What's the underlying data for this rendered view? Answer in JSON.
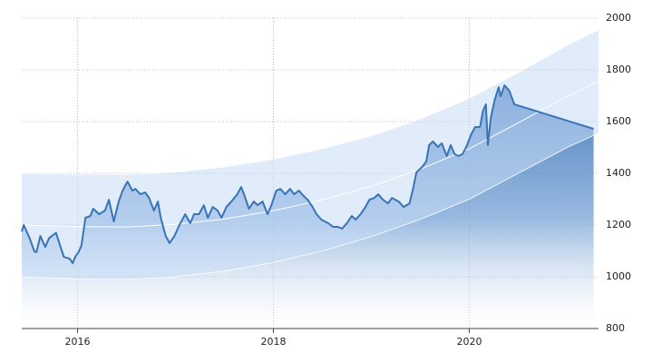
{
  "chart_data": {
    "type": "line",
    "x": [
      2015.43,
      2015.45,
      2015.51,
      2015.56,
      2015.58,
      2015.62,
      2015.67,
      2015.71,
      2015.78,
      2015.82,
      2015.86,
      2015.92,
      2015.95,
      2015.98,
      2016.01,
      2016.04,
      2016.08,
      2016.13,
      2016.16,
      2016.22,
      2016.28,
      2016.32,
      2016.37,
      2016.42,
      2016.46,
      2016.51,
      2016.56,
      2016.59,
      2016.64,
      2016.69,
      2016.73,
      2016.78,
      2016.82,
      2016.85,
      2016.9,
      2016.94,
      2016.99,
      2017.04,
      2017.1,
      2017.15,
      2017.19,
      2017.24,
      2017.29,
      2017.33,
      2017.38,
      2017.43,
      2017.47,
      2017.52,
      2017.57,
      2017.63,
      2017.67,
      2017.7,
      2017.75,
      2017.8,
      2017.84,
      2017.89,
      2017.94,
      2017.98,
      2018.03,
      2018.07,
      2018.12,
      2018.17,
      2018.21,
      2018.26,
      2018.31,
      2018.35,
      2018.4,
      2018.44,
      2018.49,
      2018.56,
      2018.61,
      2018.66,
      2018.7,
      2018.75,
      2018.8,
      2018.84,
      2018.89,
      2018.94,
      2018.98,
      2019.03,
      2019.07,
      2019.12,
      2019.17,
      2019.21,
      2019.28,
      2019.33,
      2019.39,
      2019.43,
      2019.46,
      2019.52,
      2019.56,
      2019.59,
      2019.63,
      2019.68,
      2019.72,
      2019.77,
      2019.81,
      2019.85,
      2019.89,
      2019.93,
      2019.97,
      2020.02,
      2020.06,
      2020.11,
      2020.14,
      2020.17,
      2020.19,
      2020.22,
      2020.26,
      2020.3,
      2020.32,
      2020.36,
      2020.41,
      2020.46,
      2021.27
    ],
    "values": [
      1175,
      1200,
      1150,
      1098,
      1095,
      1158,
      1115,
      1150,
      1170,
      1122,
      1077,
      1070,
      1053,
      1080,
      1095,
      1122,
      1228,
      1235,
      1263,
      1242,
      1256,
      1298,
      1214,
      1291,
      1333,
      1368,
      1333,
      1340,
      1319,
      1326,
      1305,
      1256,
      1291,
      1228,
      1158,
      1130,
      1158,
      1200,
      1242,
      1207,
      1242,
      1242,
      1277,
      1228,
      1270,
      1256,
      1228,
      1270,
      1291,
      1319,
      1347,
      1319,
      1263,
      1291,
      1277,
      1291,
      1242,
      1277,
      1333,
      1340,
      1319,
      1340,
      1319,
      1333,
      1312,
      1298,
      1270,
      1242,
      1221,
      1207,
      1193,
      1193,
      1186,
      1207,
      1235,
      1221,
      1242,
      1270,
      1298,
      1305,
      1319,
      1298,
      1284,
      1305,
      1291,
      1270,
      1284,
      1347,
      1404,
      1425,
      1446,
      1509,
      1523,
      1502,
      1516,
      1467,
      1509,
      1474,
      1467,
      1474,
      1502,
      1551,
      1579,
      1579,
      1642,
      1667,
      1509,
      1614,
      1684,
      1733,
      1698,
      1740,
      1719,
      1667,
      1572
    ],
    "color": "#3a74b8",
    "band": {
      "x": [
        2015.43,
        2016,
        2016.5,
        2017,
        2017.5,
        2018,
        2018.5,
        2019,
        2019.5,
        2020,
        2020.5,
        2021,
        2021.32
      ],
      "upper": [
        1400,
        1396,
        1395,
        1405,
        1425,
        1455,
        1495,
        1545,
        1610,
        1690,
        1790,
        1895,
        1955
      ],
      "middle": [
        1200,
        1194,
        1192.5,
        1202.5,
        1223.5,
        1255,
        1297.5,
        1350,
        1416,
        1495,
        1595,
        1697.5,
        1755
      ],
      "lower": [
        1000,
        992,
        990,
        1000,
        1022,
        1055,
        1100,
        1155,
        1222,
        1300,
        1400,
        1500,
        1555
      ],
      "color": "#c9ddf7"
    },
    "xlim": [
      2015.43,
      2021.32
    ],
    "xticks": [
      2016,
      2018,
      2020
    ],
    "ylim": [
      800,
      2000
    ],
    "yticks": [
      800,
      1000,
      1200,
      1400,
      1600,
      1800,
      2000
    ],
    "grid": true
  }
}
